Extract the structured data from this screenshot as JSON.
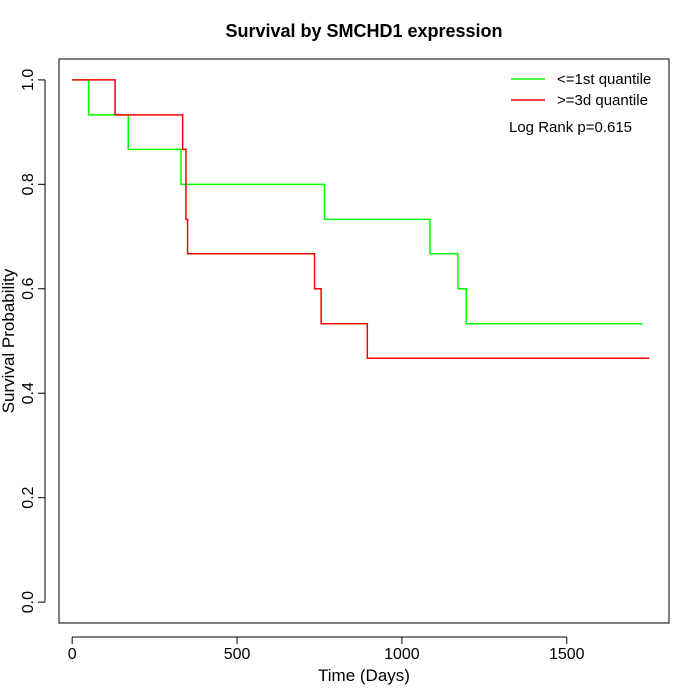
{
  "chart_data": {
    "type": "line",
    "title": "Survival by SMCHD1 expression",
    "xlabel": "Time (Days)",
    "ylabel": "Survival Probability",
    "xlim": [
      -40,
      1810
    ],
    "ylim": [
      -0.04,
      1.04
    ],
    "x_ticks": [
      0,
      500,
      1000,
      1500
    ],
    "y_ticks": [
      0.0,
      0.2,
      0.4,
      0.6,
      0.8,
      1.0
    ],
    "x_tick_labels": [
      "0",
      "500",
      "1000",
      "1500"
    ],
    "y_tick_labels": [
      "0.0",
      "0.2",
      "0.4",
      "0.6",
      "0.8",
      "1.0"
    ],
    "grid": false,
    "legend_position": "top-right",
    "annotation": "Log Rank p=0.615",
    "series": [
      {
        "name": "<=1st quantile",
        "color": "#00ff00",
        "step_x": [
          0,
          50,
          170,
          330,
          765,
          1085,
          1170,
          1195,
          1730
        ],
        "step_y": [
          1.0,
          0.933,
          0.867,
          0.8,
          0.733,
          0.667,
          0.6,
          0.533,
          0.533
        ]
      },
      {
        "name": ">=3d quantile",
        "color": "#ff0000",
        "step_x": [
          0,
          130,
          335,
          345,
          350,
          735,
          755,
          895,
          1750
        ],
        "step_y": [
          1.0,
          0.933,
          0.867,
          0.733,
          0.667,
          0.6,
          0.533,
          0.467,
          0.467
        ]
      }
    ]
  }
}
